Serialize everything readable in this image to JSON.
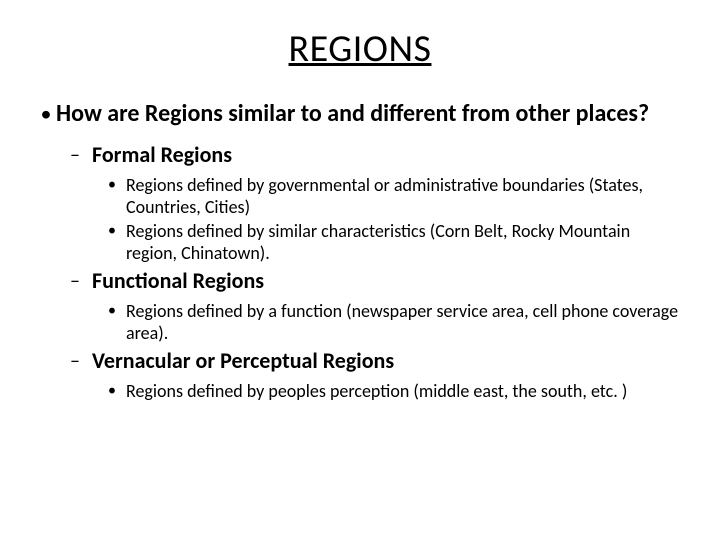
{
  "slide": {
    "title": "REGIONS",
    "background_color": "#ffffff",
    "text_color": "#000000",
    "title_fontsize": 38,
    "title_underline": true,
    "font_family": "Calibri",
    "level1": {
      "bullet_char": "•",
      "fontsize": 24,
      "font_weight": 700,
      "items": [
        {
          "text": "How are Regions similar to and different from other places?"
        }
      ]
    },
    "level2": {
      "bullet_char": "–",
      "fontsize": 22,
      "font_weight": 700,
      "items": [
        {
          "text": "Formal Regions"
        },
        {
          "text": "Functional Regions"
        },
        {
          "text": "Vernacular  or Perceptual Regions"
        }
      ]
    },
    "level3": {
      "bullet_char": "•",
      "fontsize": 18,
      "font_weight": 400,
      "groups": [
        [
          {
            "text": "Regions defined by governmental or administrative boundaries (States, Countries, Cities)"
          },
          {
            "text": "Regions defined by similar characteristics (Corn Belt, Rocky Mountain region, Chinatown)."
          }
        ],
        [
          {
            "text": "Regions defined by a function (newspaper service area, cell phone coverage area)."
          }
        ],
        [
          {
            "text": "Regions defined by peoples perception (middle east, the south, etc. )"
          }
        ]
      ]
    }
  }
}
